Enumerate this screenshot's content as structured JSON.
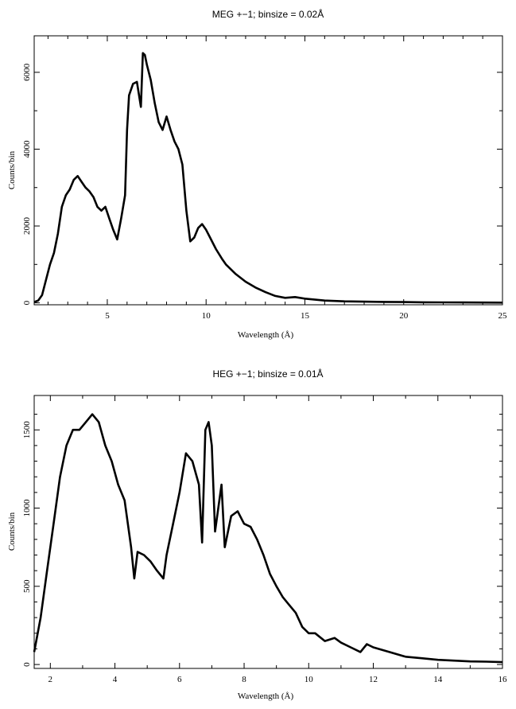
{
  "chart_data": [
    {
      "type": "line",
      "title": "MEG +−1; binsize = 0.02Å",
      "xlabel": "Wavelength (Å)",
      "ylabel": "Counts/bin",
      "xlim": [
        1.3,
        25
      ],
      "ylim": [
        -50,
        6950
      ],
      "xticks": [
        5,
        10,
        15,
        20,
        25
      ],
      "yticks": [
        0,
        2000,
        4000,
        6000
      ],
      "xticks_minor": [
        2,
        3,
        4,
        6,
        7,
        8,
        9,
        11,
        12,
        13,
        14,
        16,
        17,
        18,
        19,
        21,
        22,
        23,
        24
      ],
      "yticks_minor": [
        1000,
        3000,
        5000
      ],
      "grid": false,
      "series": [
        {
          "color": "#000000",
          "x": [
            1.3,
            1.5,
            1.7,
            1.9,
            2.1,
            2.3,
            2.5,
            2.7,
            2.9,
            3.1,
            3.3,
            3.5,
            3.7,
            3.9,
            4.1,
            4.3,
            4.5,
            4.7,
            4.9,
            5.1,
            5.3,
            5.5,
            5.7,
            5.9,
            6.0,
            6.1,
            6.3,
            6.5,
            6.7,
            6.8,
            6.9,
            7.0,
            7.2,
            7.4,
            7.6,
            7.8,
            8.0,
            8.2,
            8.4,
            8.6,
            8.8,
            9.0,
            9.2,
            9.4,
            9.6,
            9.8,
            10.0,
            10.2,
            10.5,
            10.8,
            11.0,
            11.5,
            12.0,
            12.5,
            13.0,
            13.5,
            14.0,
            14.5,
            15.0,
            16.0,
            17.0,
            18.0,
            19.0,
            20.0,
            21.0,
            22.0,
            23.0,
            24.0,
            25.0
          ],
          "y": [
            20,
            60,
            200,
            600,
            1000,
            1300,
            1800,
            2500,
            2800,
            2950,
            3200,
            3300,
            3150,
            3000,
            2900,
            2750,
            2500,
            2400,
            2500,
            2200,
            1900,
            1650,
            2200,
            2800,
            4500,
            5400,
            5700,
            5750,
            5100,
            6500,
            6450,
            6200,
            5800,
            5200,
            4700,
            4500,
            4850,
            4500,
            4200,
            4000,
            3600,
            2400,
            1600,
            1700,
            1950,
            2050,
            1900,
            1700,
            1400,
            1150,
            1000,
            750,
            550,
            400,
            280,
            180,
            130,
            150,
            110,
            60,
            40,
            30,
            25,
            20,
            15,
            12,
            10,
            8,
            5
          ]
        }
      ]
    },
    {
      "type": "line",
      "title": "HEG +−1; binsize = 0.01Å",
      "xlabel": "Wavelength (Å)",
      "ylabel": "Counts/bin",
      "xlim": [
        1.5,
        16
      ],
      "ylim": [
        -25,
        1720
      ],
      "xticks": [
        2,
        4,
        6,
        8,
        10,
        12,
        14,
        16
      ],
      "yticks": [
        0,
        500,
        1000,
        1500
      ],
      "xticks_minor": [
        3,
        5,
        7,
        9,
        11,
        13,
        15
      ],
      "yticks_minor": [
        100,
        200,
        300,
        400,
        600,
        700,
        800,
        900,
        1100,
        1200,
        1300,
        1400,
        1600
      ],
      "grid": false,
      "series": [
        {
          "color": "#000000",
          "x": [
            1.5,
            1.7,
            1.9,
            2.1,
            2.3,
            2.5,
            2.7,
            2.9,
            3.1,
            3.3,
            3.5,
            3.7,
            3.9,
            4.1,
            4.3,
            4.5,
            4.6,
            4.7,
            4.9,
            5.1,
            5.3,
            5.5,
            5.6,
            5.8,
            6.0,
            6.2,
            6.4,
            6.6,
            6.7,
            6.8,
            6.9,
            7.0,
            7.1,
            7.3,
            7.4,
            7.6,
            7.8,
            8.0,
            8.2,
            8.4,
            8.6,
            8.8,
            9.0,
            9.2,
            9.4,
            9.6,
            9.8,
            10.0,
            10.2,
            10.5,
            10.8,
            11.0,
            11.3,
            11.6,
            11.8,
            12.0,
            12.5,
            13.0,
            13.5,
            14.0,
            14.5,
            15.0,
            15.5,
            16.0
          ],
          "y": [
            80,
            300,
            600,
            900,
            1200,
            1400,
            1500,
            1500,
            1550,
            1600,
            1550,
            1400,
            1300,
            1150,
            1050,
            750,
            550,
            720,
            700,
            660,
            600,
            550,
            700,
            900,
            1100,
            1350,
            1300,
            1150,
            780,
            1500,
            1550,
            1400,
            850,
            1150,
            750,
            950,
            980,
            900,
            880,
            800,
            700,
            580,
            500,
            430,
            380,
            330,
            240,
            200,
            200,
            150,
            170,
            140,
            110,
            80,
            130,
            110,
            80,
            50,
            40,
            30,
            25,
            20,
            18,
            15
          ]
        }
      ]
    }
  ]
}
